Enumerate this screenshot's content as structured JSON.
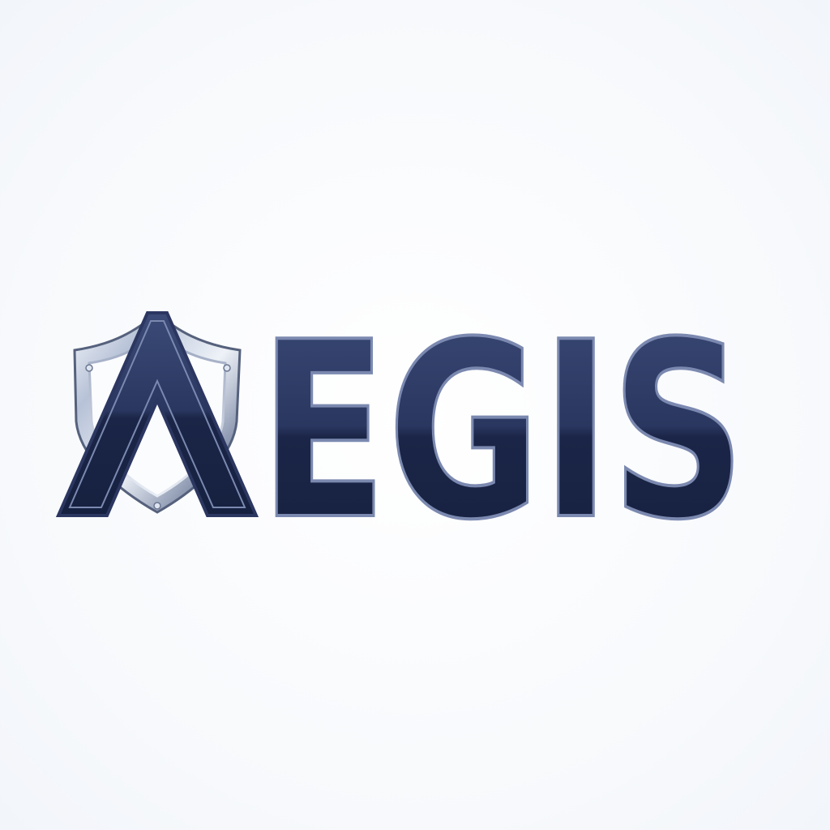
{
  "logo": {
    "wordmark": "AEGIS",
    "rendered_letters": "EGIS",
    "emblem": "shield-icon",
    "colors": {
      "navy": "#1f2a4d",
      "navy_light": "#34426a",
      "outline": "#7b89b0",
      "steel_light": "#f3f6fb",
      "steel_mid": "#b9c3d6",
      "steel_dark": "#5f6b85",
      "background": "#fbfcfe"
    }
  }
}
